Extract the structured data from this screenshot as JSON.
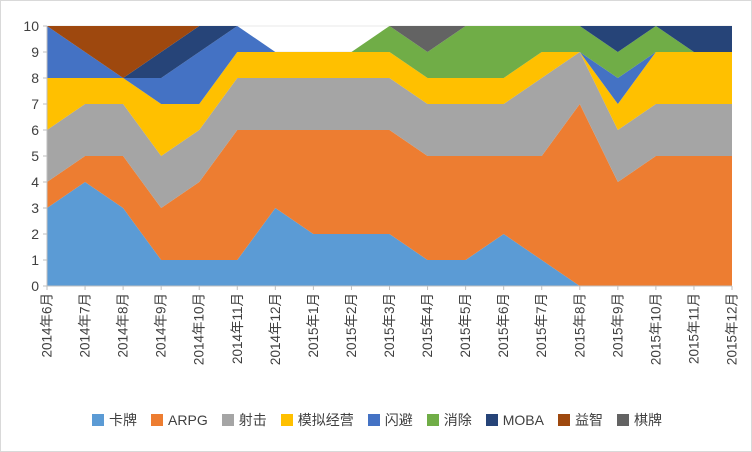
{
  "chart_data": {
    "type": "area",
    "stacked": true,
    "title": "",
    "xlabel": "",
    "ylabel": "",
    "ylim": [
      0,
      10
    ],
    "yticks": [
      0,
      1,
      2,
      3,
      4,
      5,
      6,
      7,
      8,
      9,
      10
    ],
    "grid": true,
    "legend_position": "bottom",
    "categories": [
      "2014年6月",
      "2014年7月",
      "2014年8月",
      "2014年9月",
      "2014年10月",
      "2014年11月",
      "2014年12月",
      "2015年1月",
      "2015年2月",
      "2015年3月",
      "2015年4月",
      "2015年5月",
      "2015年6月",
      "2015年7月",
      "2015年8月",
      "2015年9月",
      "2015年10月",
      "2015年11月",
      "2015年12月"
    ],
    "series": [
      {
        "name": "卡牌",
        "color": "#5B9BD5",
        "values": [
          3,
          4,
          3,
          1,
          1,
          1,
          3,
          2,
          2,
          2,
          1,
          1,
          2,
          1,
          0,
          0,
          0,
          0,
          0
        ]
      },
      {
        "name": "ARPG",
        "color": "#ED7D31",
        "values": [
          1,
          1,
          2,
          2,
          3,
          5,
          3,
          4,
          4,
          4,
          4,
          4,
          3,
          4,
          7,
          4,
          5,
          5,
          5
        ]
      },
      {
        "name": "射击",
        "color": "#A5A5A5",
        "values": [
          2,
          2,
          2,
          2,
          2,
          2,
          2,
          2,
          2,
          2,
          2,
          2,
          2,
          3,
          2,
          2,
          2,
          2,
          2
        ]
      },
      {
        "name": "模拟经营",
        "color": "#FFC000",
        "values": [
          2,
          1,
          1,
          2,
          1,
          1,
          1,
          1,
          1,
          1,
          1,
          1,
          1,
          1,
          0,
          1,
          2,
          2,
          2
        ]
      },
      {
        "name": "闪避",
        "color": "#4472C4",
        "values": [
          2,
          1,
          0,
          1,
          2,
          1,
          0,
          0,
          0,
          0,
          0,
          0,
          0,
          0,
          0,
          1,
          0,
          0,
          0
        ]
      },
      {
        "name": "消除",
        "color": "#70AD47",
        "values": [
          0,
          0,
          0,
          0,
          0,
          0,
          0,
          0,
          0,
          1,
          1,
          2,
          2,
          1,
          1,
          1,
          1,
          0,
          0
        ]
      },
      {
        "name": "MOBA",
        "color": "#264478",
        "values": [
          0,
          0,
          0,
          1,
          1,
          0,
          0,
          0,
          0,
          0,
          0,
          0,
          0,
          0,
          0,
          1,
          0,
          1,
          1
        ]
      },
      {
        "name": "益智",
        "color": "#9E480E",
        "values": [
          0,
          1,
          2,
          1,
          0,
          0,
          0,
          0,
          0,
          0,
          0,
          0,
          0,
          0,
          0,
          0,
          0,
          0,
          0
        ]
      },
      {
        "name": "棋牌",
        "color": "#636363",
        "values": [
          0,
          0,
          0,
          0,
          0,
          0,
          0,
          0,
          0,
          0,
          1,
          0,
          0,
          0,
          0,
          0,
          0,
          0,
          0
        ]
      }
    ],
    "axis_color": "#BFBFBF",
    "gridline_color": "#E9E9E9",
    "tick_label_color": "#404040"
  }
}
